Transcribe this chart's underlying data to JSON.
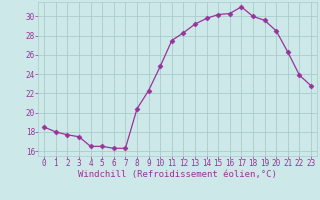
{
  "x": [
    0,
    1,
    2,
    3,
    4,
    5,
    6,
    7,
    8,
    9,
    10,
    11,
    12,
    13,
    14,
    15,
    16,
    17,
    18,
    19,
    20,
    21,
    22,
    23
  ],
  "y": [
    18.5,
    18.0,
    17.7,
    17.5,
    16.5,
    16.5,
    16.3,
    16.3,
    20.4,
    22.3,
    24.8,
    27.5,
    28.3,
    29.2,
    29.8,
    30.2,
    30.3,
    31.0,
    30.0,
    29.6,
    28.5,
    26.3,
    23.9,
    22.8
  ],
  "line_color": "#993399",
  "marker": "D",
  "marker_size": 2.5,
  "bg_color": "#cce8e8",
  "grid_color": "#aacccc",
  "tick_color": "#993399",
  "label_color": "#993399",
  "xlabel": "Windchill (Refroidissement éolien,°C)",
  "ylim": [
    15.5,
    31.5
  ],
  "yticks": [
    16,
    18,
    20,
    22,
    24,
    26,
    28,
    30
  ],
  "xticks": [
    0,
    1,
    2,
    3,
    4,
    5,
    6,
    7,
    8,
    9,
    10,
    11,
    12,
    13,
    14,
    15,
    16,
    17,
    18,
    19,
    20,
    21,
    22,
    23
  ],
  "xlabel_fontsize": 6.5,
  "tick_fontsize": 5.5
}
